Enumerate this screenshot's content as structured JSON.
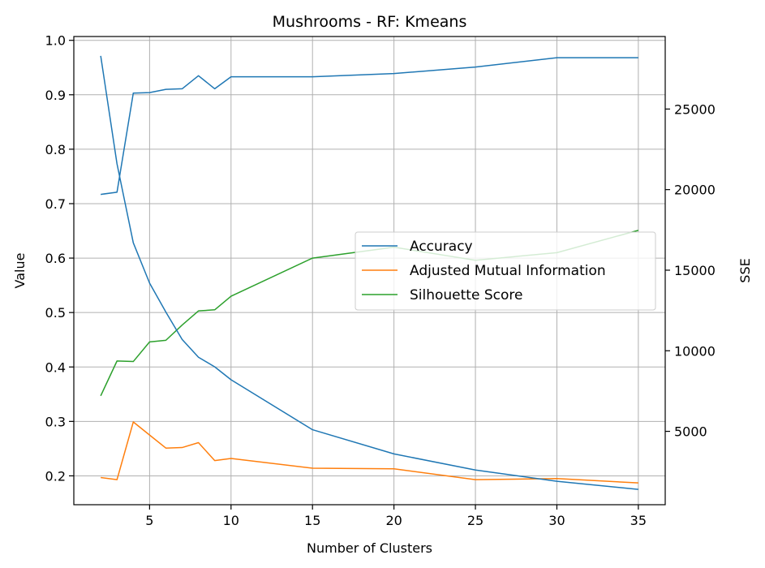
{
  "chart_data": {
    "type": "line",
    "title": "Mushrooms - RF: Kmeans",
    "xlabel": "Number of Clusters",
    "ylabel": "Value",
    "y2label": "SSE",
    "x": [
      2,
      3,
      4,
      5,
      6,
      7,
      8,
      9,
      10,
      15,
      20,
      25,
      30,
      35
    ],
    "xlim": [
      0.35,
      36.65
    ],
    "ylim": [
      0.147,
      1.007
    ],
    "y2lim": [
      447,
      29500
    ],
    "xticks": [
      "5",
      "10",
      "15",
      "20",
      "25",
      "30",
      "35"
    ],
    "yticks": [
      "0.2",
      "0.3",
      "0.4",
      "0.5",
      "0.6",
      "0.7",
      "0.8",
      "0.9",
      "1.0"
    ],
    "y2ticks": [
      "5000",
      "10000",
      "15000",
      "20000",
      "25000"
    ],
    "grid": true,
    "legend_position": "center-right",
    "series": [
      {
        "name": "Accuracy",
        "axis": "left",
        "color": "#1f77b4",
        "values": [
          0.717,
          0.721,
          0.903,
          0.904,
          0.91,
          0.911,
          0.935,
          0.911,
          0.933,
          0.933,
          0.939,
          0.951,
          0.968,
          0.968
        ]
      },
      {
        "name": "Adjusted Mutual Information",
        "axis": "left",
        "color": "#ff7f0e",
        "values": [
          0.197,
          0.193,
          0.299,
          0.275,
          0.251,
          0.252,
          0.261,
          0.228,
          0.232,
          0.214,
          0.213,
          0.193,
          0.195,
          0.187
        ]
      },
      {
        "name": "Silhouette Score",
        "axis": "left",
        "color": "#2ca02c",
        "values": [
          0.347,
          0.411,
          0.41,
          0.446,
          0.449,
          0.477,
          0.503,
          0.505,
          0.53,
          0.6,
          0.62,
          0.596,
          0.61,
          0.651
        ]
      },
      {
        "axis": "right",
        "color": "#1f77b4",
        "values": [
          28300,
          21600,
          16700,
          14200,
          12400,
          10700,
          9600,
          9000,
          8200,
          5100,
          3600,
          2600,
          1900,
          1400
        ]
      }
    ]
  }
}
